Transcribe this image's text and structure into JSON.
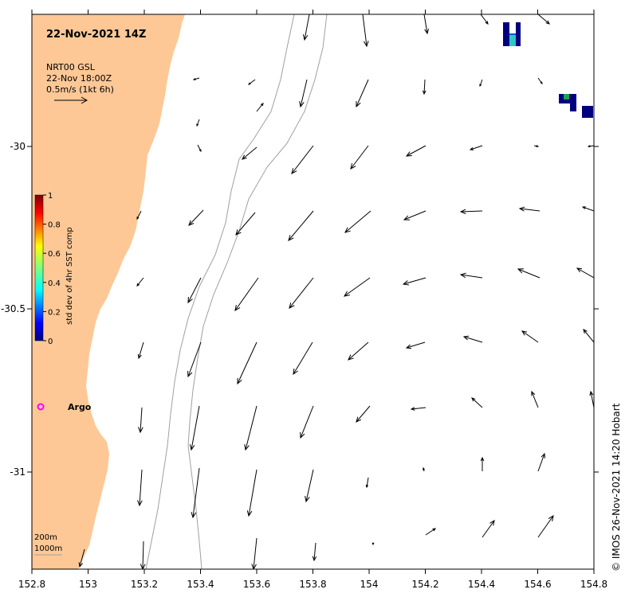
{
  "map": {
    "title": "22-Nov-2021 14Z",
    "product": "NRT00 GSL",
    "product_time": "22-Nov 18:00Z",
    "vector_scale": "0.5m/s (1kt 6h)",
    "credit": "©  IMOS 26-Nov-2021 14:20 Hobart",
    "lon_ticks": [
      "152.8",
      "153",
      "153.2",
      "153.4",
      "153.6",
      "153.8",
      "154",
      "154.2",
      "154.4",
      "154.6",
      "154.8"
    ],
    "lat_ticks": [
      "-30",
      "-30.5",
      "-31"
    ],
    "colorbar": {
      "label": "std dev of 4hr SST comp",
      "ticks": [
        "0",
        "0.2",
        "0.4",
        "0.6",
        "0.8",
        "1"
      ]
    },
    "argo_label": "Argo",
    "contour_labels": [
      "200m",
      "1000m"
    ],
    "colors": {
      "land": "#fdc896",
      "argo": "#ff00ff",
      "contour": "#a0a0a0"
    }
  }
}
